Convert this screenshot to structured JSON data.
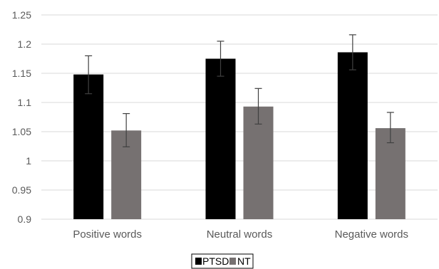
{
  "chart_data": {
    "type": "bar",
    "categories": [
      "Positive words",
      "Neutral words",
      "Negative words"
    ],
    "series": [
      {
        "name": "PTSD",
        "color": "#000000",
        "values": [
          1.148,
          1.175,
          1.186
        ],
        "error_low": [
          1.115,
          1.145,
          1.156
        ],
        "error_high": [
          1.18,
          1.205,
          1.216
        ]
      },
      {
        "name": "NT",
        "color": "#767171",
        "values": [
          1.052,
          1.093,
          1.056
        ],
        "error_low": [
          1.024,
          1.063,
          1.031
        ],
        "error_high": [
          1.081,
          1.124,
          1.083
        ]
      }
    ],
    "title": "",
    "xlabel": "",
    "ylabel": "",
    "ylim": [
      0.9,
      1.25
    ],
    "yticks": [
      "0.9",
      "0.95",
      "1",
      "1.05",
      "1.1",
      "1.15",
      "1.2",
      "1.25"
    ],
    "grid": true,
    "legend_position": "bottom-center",
    "gridline_color": "#d9d9d9",
    "error_bar_color": "#404040"
  }
}
